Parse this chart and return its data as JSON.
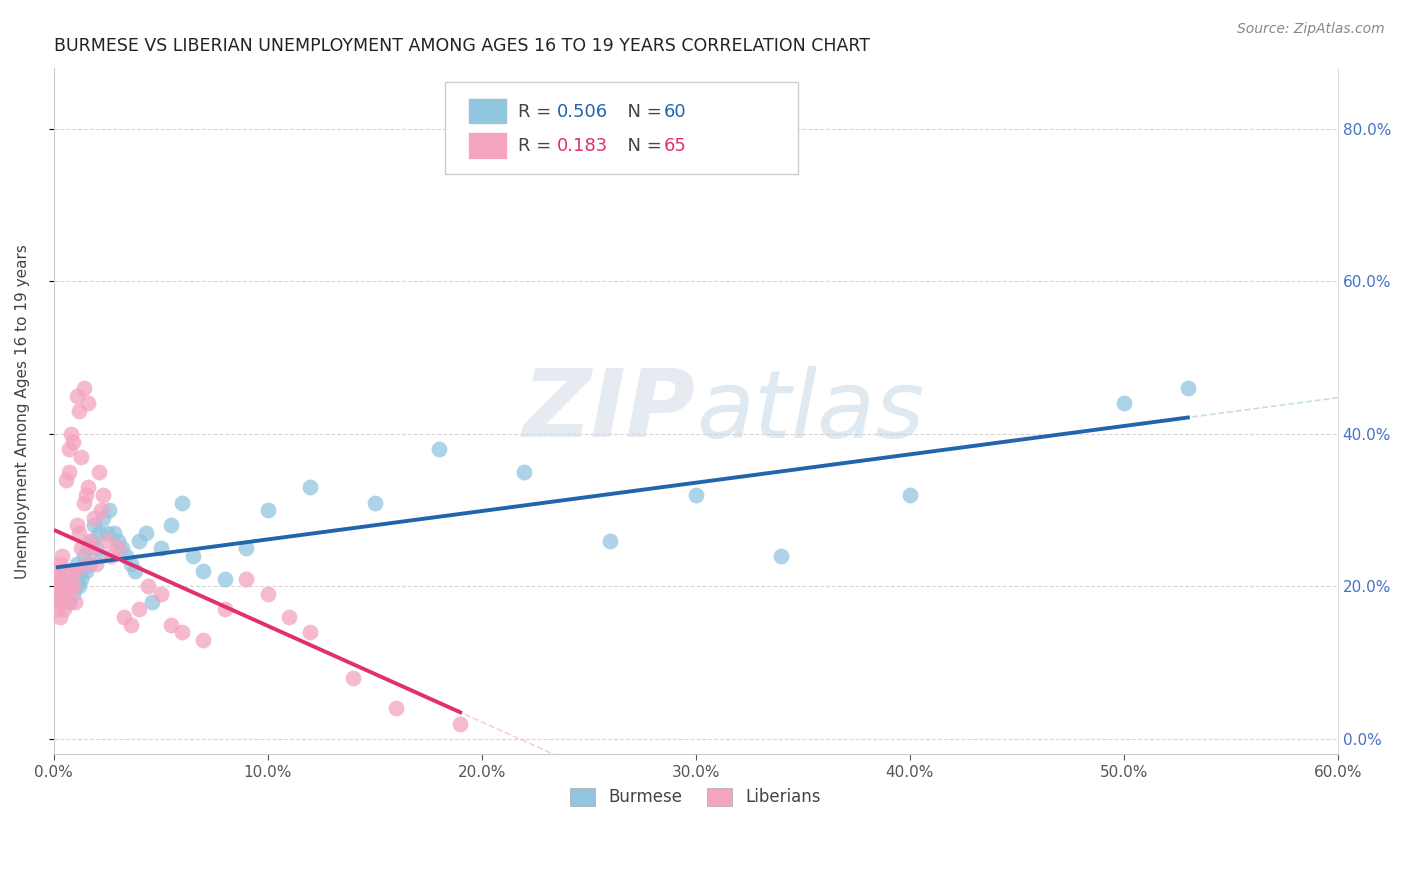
{
  "title": "BURMESE VS LIBERIAN UNEMPLOYMENT AMONG AGES 16 TO 19 YEARS CORRELATION CHART",
  "source": "Source: ZipAtlas.com",
  "ylabel": "Unemployment Among Ages 16 to 19 years",
  "xlim": [
    0.0,
    0.6
  ],
  "ylim": [
    -0.02,
    0.88
  ],
  "burmese_color": "#92c5de",
  "liberian_color": "#f4a3c0",
  "burmese_line_color": "#2166ac",
  "liberian_line_color": "#e03070",
  "burmese_R": 0.506,
  "burmese_N": 60,
  "liberian_R": 0.183,
  "liberian_N": 65,
  "watermark_zip": "ZIP",
  "watermark_atlas": "atlas",
  "burmese_x": [
    0.002,
    0.003,
    0.003,
    0.004,
    0.005,
    0.005,
    0.006,
    0.006,
    0.007,
    0.007,
    0.008,
    0.008,
    0.009,
    0.01,
    0.01,
    0.011,
    0.011,
    0.012,
    0.013,
    0.013,
    0.014,
    0.015,
    0.015,
    0.016,
    0.017,
    0.018,
    0.019,
    0.02,
    0.021,
    0.022,
    0.023,
    0.025,
    0.026,
    0.028,
    0.03,
    0.032,
    0.034,
    0.036,
    0.038,
    0.04,
    0.043,
    0.046,
    0.05,
    0.055,
    0.06,
    0.065,
    0.07,
    0.08,
    0.09,
    0.1,
    0.12,
    0.15,
    0.18,
    0.22,
    0.26,
    0.3,
    0.34,
    0.4,
    0.5,
    0.53
  ],
  "burmese_y": [
    0.2,
    0.19,
    0.18,
    0.21,
    0.22,
    0.19,
    0.2,
    0.21,
    0.18,
    0.22,
    0.2,
    0.21,
    0.19,
    0.2,
    0.22,
    0.21,
    0.23,
    0.2,
    0.22,
    0.21,
    0.24,
    0.23,
    0.22,
    0.25,
    0.23,
    0.26,
    0.28,
    0.25,
    0.27,
    0.24,
    0.29,
    0.27,
    0.3,
    0.27,
    0.26,
    0.25,
    0.24,
    0.23,
    0.22,
    0.26,
    0.27,
    0.18,
    0.25,
    0.28,
    0.31,
    0.24,
    0.22,
    0.21,
    0.25,
    0.3,
    0.33,
    0.31,
    0.38,
    0.35,
    0.26,
    0.32,
    0.24,
    0.32,
    0.44,
    0.46
  ],
  "liberian_x": [
    0.001,
    0.001,
    0.002,
    0.002,
    0.002,
    0.003,
    0.003,
    0.003,
    0.003,
    0.004,
    0.004,
    0.005,
    0.005,
    0.005,
    0.006,
    0.006,
    0.006,
    0.007,
    0.007,
    0.007,
    0.008,
    0.008,
    0.009,
    0.009,
    0.009,
    0.01,
    0.01,
    0.011,
    0.011,
    0.012,
    0.012,
    0.013,
    0.013,
    0.014,
    0.014,
    0.015,
    0.015,
    0.016,
    0.016,
    0.017,
    0.018,
    0.019,
    0.02,
    0.021,
    0.022,
    0.023,
    0.025,
    0.027,
    0.03,
    0.033,
    0.036,
    0.04,
    0.044,
    0.05,
    0.055,
    0.06,
    0.07,
    0.08,
    0.09,
    0.1,
    0.11,
    0.12,
    0.14,
    0.16,
    0.19
  ],
  "liberian_y": [
    0.2,
    0.22,
    0.19,
    0.21,
    0.17,
    0.16,
    0.23,
    0.2,
    0.18,
    0.24,
    0.19,
    0.21,
    0.17,
    0.2,
    0.34,
    0.19,
    0.22,
    0.18,
    0.35,
    0.38,
    0.2,
    0.4,
    0.2,
    0.22,
    0.39,
    0.22,
    0.18,
    0.28,
    0.45,
    0.43,
    0.27,
    0.37,
    0.25,
    0.31,
    0.46,
    0.32,
    0.23,
    0.33,
    0.44,
    0.26,
    0.25,
    0.29,
    0.23,
    0.35,
    0.3,
    0.32,
    0.26,
    0.24,
    0.25,
    0.16,
    0.15,
    0.17,
    0.2,
    0.19,
    0.15,
    0.14,
    0.13,
    0.17,
    0.21,
    0.19,
    0.16,
    0.14,
    0.08,
    0.04,
    0.02
  ],
  "x_ticks": [
    0.0,
    0.1,
    0.2,
    0.3,
    0.4,
    0.5,
    0.6
  ],
  "x_tick_labels": [
    "0.0%",
    "10.0%",
    "20.0%",
    "30.0%",
    "40.0%",
    "50.0%",
    "60.0%"
  ],
  "y_ticks": [
    0.0,
    0.2,
    0.4,
    0.6,
    0.8
  ],
  "y_tick_labels_right": [
    "0.0%",
    "20.0%",
    "40.0%",
    "60.0%",
    "80.0%"
  ]
}
